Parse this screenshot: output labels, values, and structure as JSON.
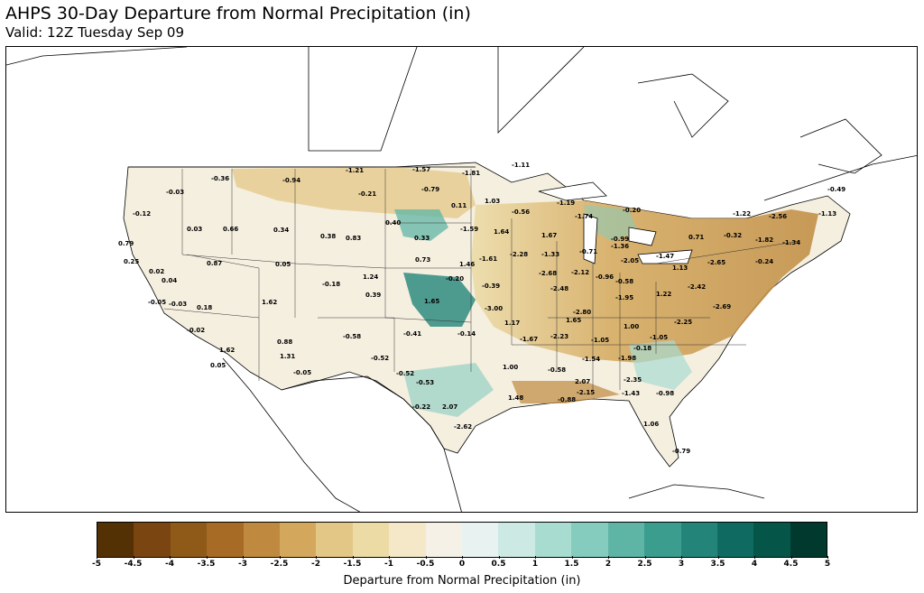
{
  "title": "AHPS 30-Day Departure from Normal Precipitation (in)",
  "subtitle": "Valid: 12Z Tuesday Sep 09",
  "colorbar": {
    "label": "Departure from Normal Precipitation (in)",
    "ticks": [
      "-5",
      "-4.5",
      "-4",
      "-3.5",
      "-3",
      "-2.5",
      "-2",
      "-1.5",
      "-1",
      "-0.5",
      "0",
      "0.5",
      "1",
      "1.5",
      "2",
      "2.5",
      "3",
      "3.5",
      "4",
      "4.5",
      "5"
    ],
    "colors": [
      "#543005",
      "#7a4510",
      "#8f5a18",
      "#a86b25",
      "#bf8a3f",
      "#d4a85c",
      "#e3c786",
      "#ecdba5",
      "#f4e8c8",
      "#f5f1e6",
      "#e8f3f1",
      "#cde9e4",
      "#a8dcd1",
      "#86ccbe",
      "#5fb5a5",
      "#3a9d8e",
      "#23857a",
      "#0f6b62",
      "#065549",
      "#01392f"
    ]
  },
  "station_values": [
    "-0.03",
    "-0.36",
    "-0.94",
    "-1.21",
    "-1.57",
    "-1.81",
    "-1.11",
    "-0.21",
    "-0.79",
    "0.11",
    "1.03",
    "-0.56",
    "-1.19",
    "-1.74",
    "-0.20",
    "-0.49",
    "-0.12",
    "0.03",
    "0.66",
    "0.34",
    "0.38",
    "0.83",
    "0.40",
    "0.33",
    "-1.59",
    "1.64",
    "1.67",
    "-0.99",
    "-1.22",
    "-2.56",
    "-1.13",
    "0.79",
    "0.25",
    "0.02",
    "0.87",
    "0.05",
    "0.73",
    "1.46",
    "-1.61",
    "-2.28",
    "-1.33",
    "-0.71",
    "-1.36",
    "0.71",
    "-0.32",
    "-1.82",
    "-1.34",
    "0.04",
    "-0.18",
    "1.24",
    "0.39",
    "-0.39",
    "-2.68",
    "-2.12",
    "-2.05",
    "-1.47",
    "-2.65",
    "1.13",
    "-0.24",
    "-2.48",
    "-0.96",
    "-0.58",
    "-0.05",
    "-0.03",
    "0.18",
    "1.62",
    "1.65",
    "-0.20",
    "-3.00",
    "-2.80",
    "-1.95",
    "1.22",
    "-2.42",
    "-2.69",
    "-0.02",
    "0.88",
    "-0.58",
    "-0.41",
    "-0.14",
    "1.17",
    "1.65",
    "1.00",
    "-2.25",
    "1.62",
    "1.31",
    "-0.52",
    "-1.67",
    "-2.23",
    "-1.05",
    "-0.18",
    "-1.05",
    "0.05",
    "-0.05",
    "-0.52",
    "1.00",
    "-1.54",
    "-1.98",
    "-0.58",
    "-0.53",
    "2.07",
    "-2.35",
    "-0.22",
    "2.07",
    "1.48",
    "-0.98",
    "-2.15",
    "-1.43",
    "-0.88",
    "-2.62",
    "1.06",
    "-0.79"
  ]
}
